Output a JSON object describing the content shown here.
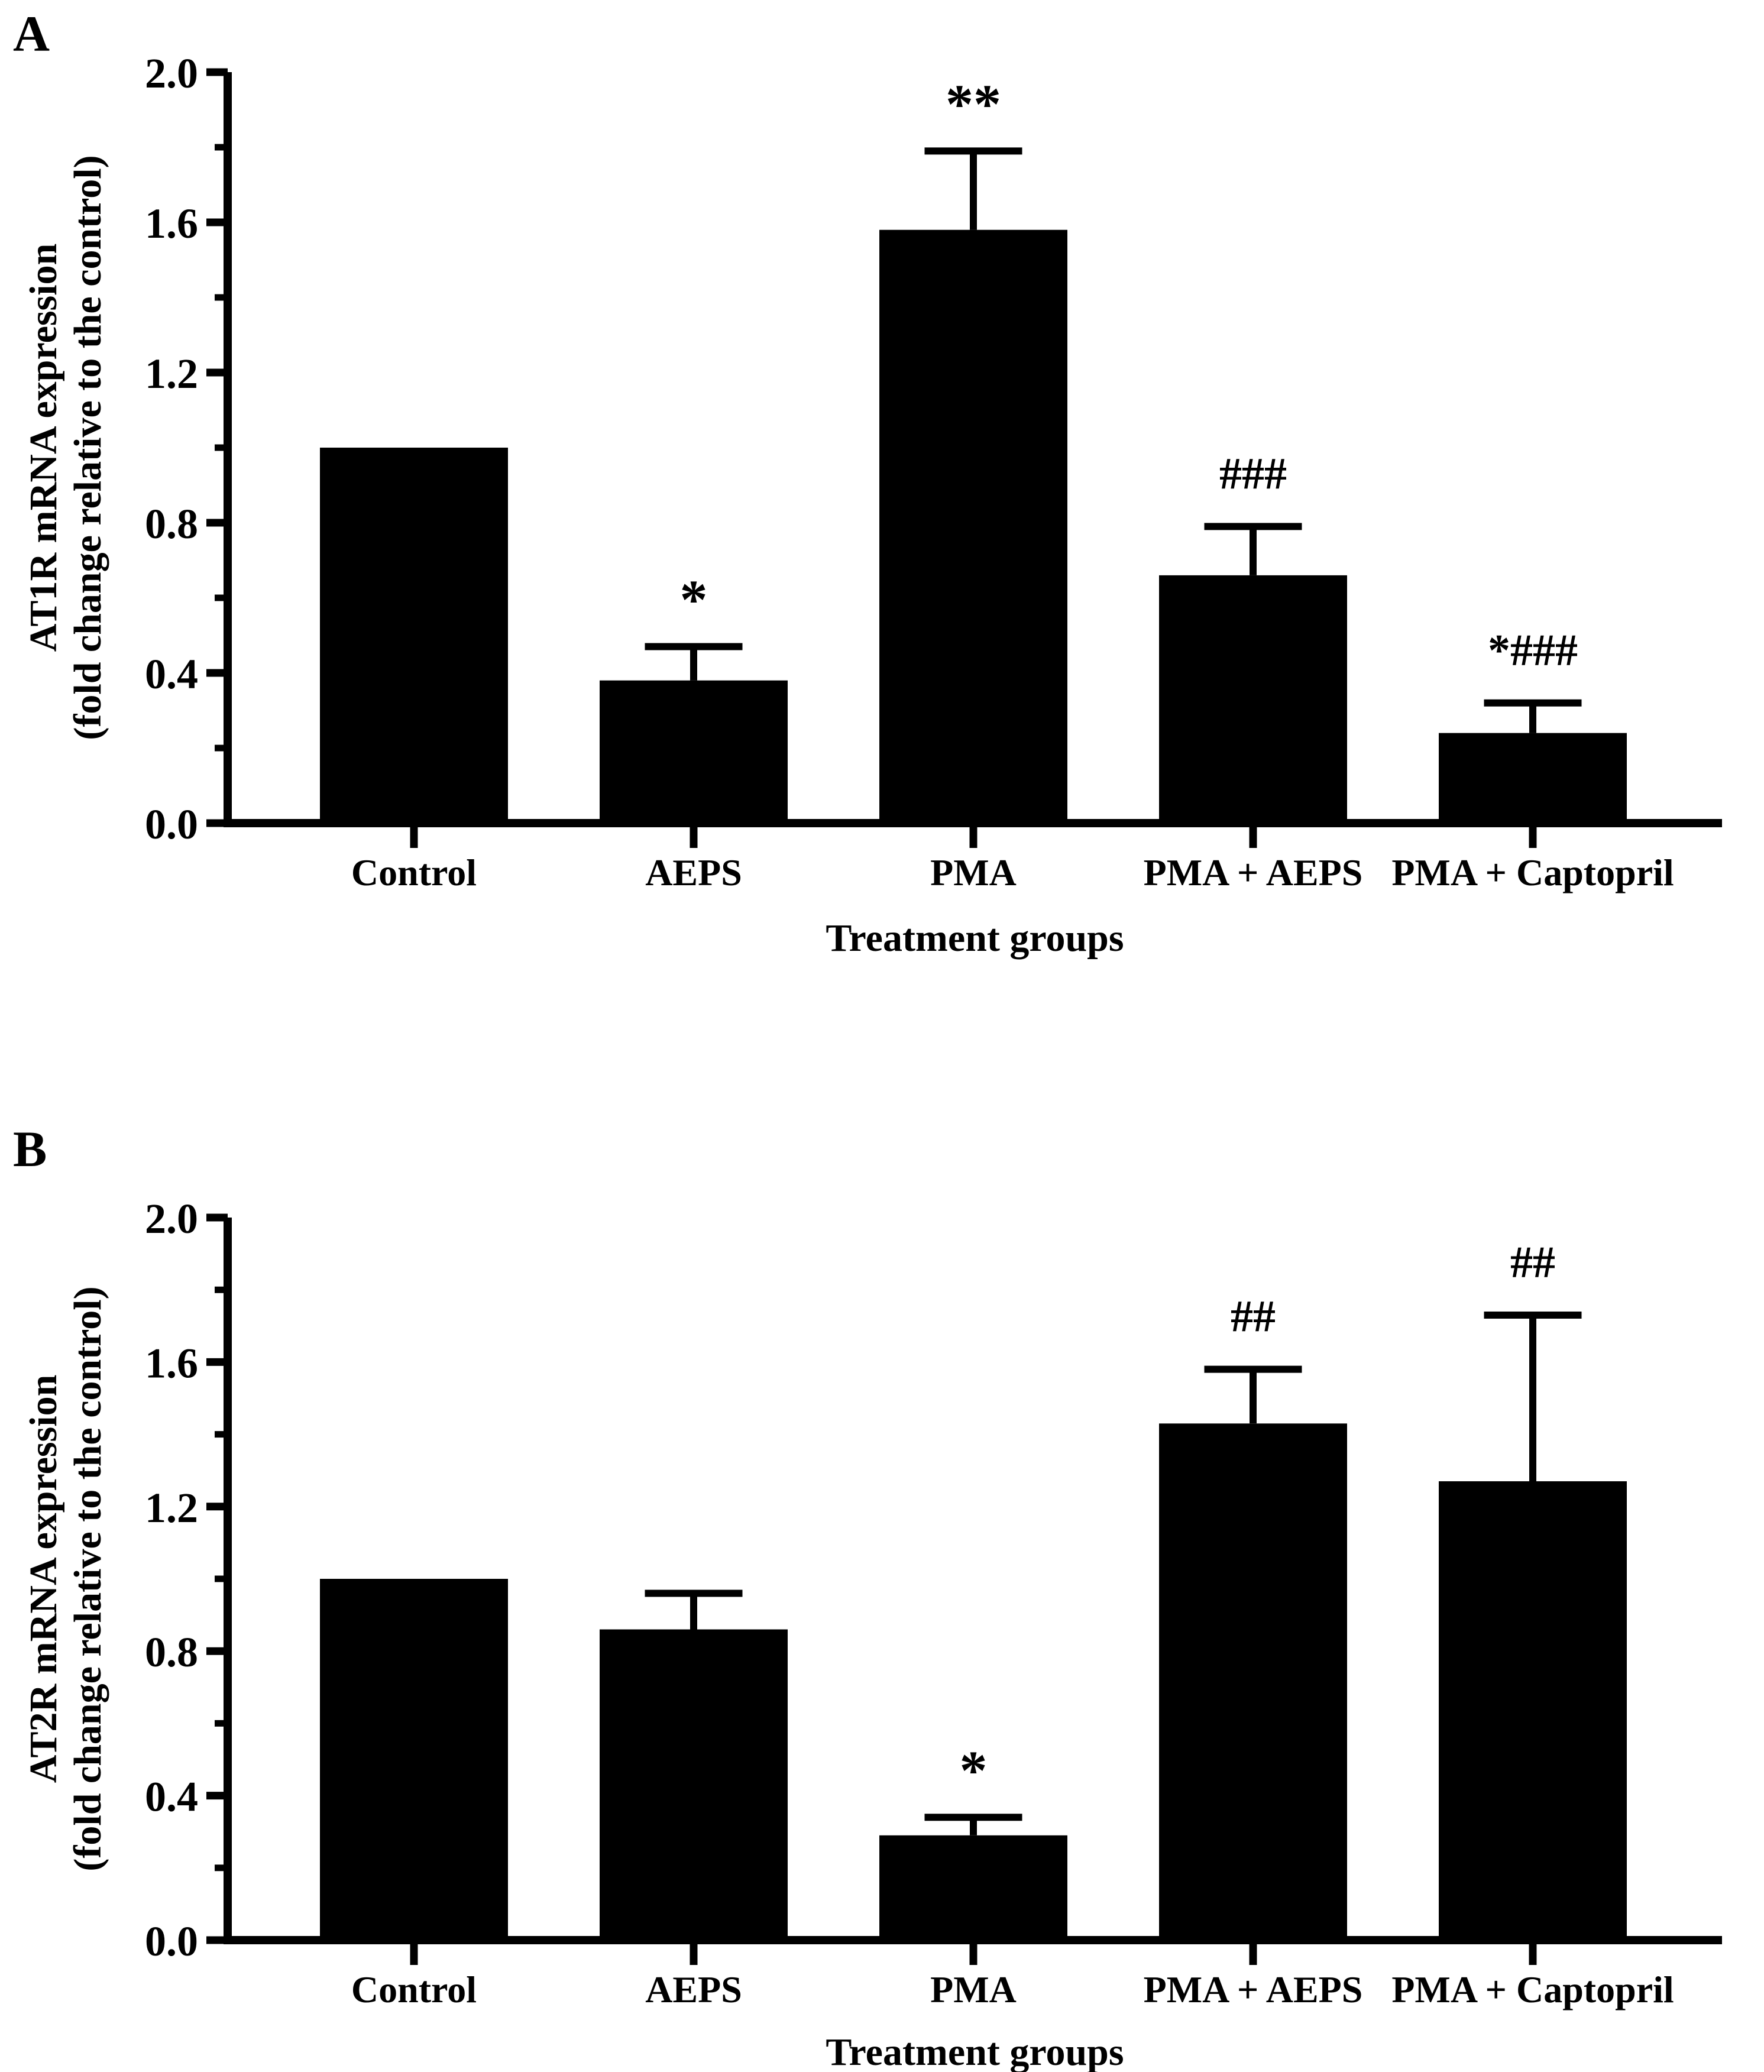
{
  "page": {
    "background_color": "#ffffff",
    "ink_color": "#000000"
  },
  "chart_data": [
    {
      "type": "bar",
      "panel_label": "A",
      "categories": [
        "Control",
        "AEPS",
        "PMA",
        "PMA + AEPS",
        "PMA + Captopril"
      ],
      "values": [
        1.0,
        0.38,
        1.58,
        0.66,
        0.24
      ],
      "error_up": [
        0,
        0.09,
        0.21,
        0.13,
        0.08
      ],
      "significance": [
        "",
        "*",
        "**",
        "###",
        "*###"
      ],
      "ylabel_line1": "AT1R mRNA expression",
      "ylabel_line2": "(fold change relative to the control)",
      "xlabel": "Treatment groups",
      "ylim": [
        0.0,
        2.0
      ],
      "ytick_labels": [
        "0.0",
        "0.4",
        "0.8",
        "1.2",
        "1.6",
        "2.0"
      ],
      "ytick_step": 0.4,
      "yminor_step": 0.2,
      "bar_color": "#000000",
      "grid": false,
      "legend": null
    },
    {
      "type": "bar",
      "panel_label": "B",
      "categories": [
        "Control",
        "AEPS",
        "PMA",
        "PMA + AEPS",
        "PMA + Captopril"
      ],
      "values": [
        1.0,
        0.86,
        0.29,
        1.43,
        1.27
      ],
      "error_up": [
        0,
        0.1,
        0.05,
        0.15,
        0.46
      ],
      "significance": [
        "",
        "",
        "*",
        "##",
        "##"
      ],
      "ylabel_line1": "AT2R mRNA expression",
      "ylabel_line2": "(fold change relative to the control)",
      "xlabel": "Treatment groups",
      "ylim": [
        0.0,
        2.0
      ],
      "ytick_labels": [
        "0.0",
        "0.4",
        "0.8",
        "1.2",
        "1.6",
        "2.0"
      ],
      "ytick_step": 0.4,
      "yminor_step": 0.2,
      "bar_color": "#000000",
      "grid": false,
      "legend": null
    }
  ]
}
